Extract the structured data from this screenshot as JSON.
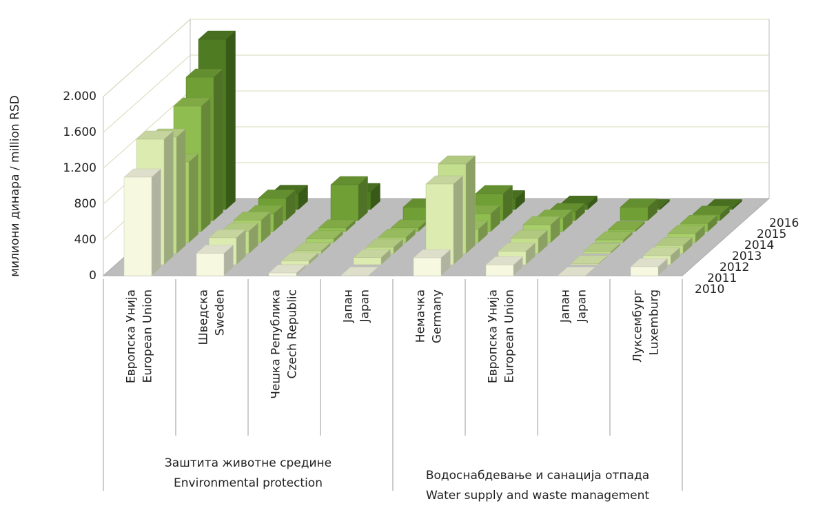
{
  "chart_data": {
    "type": "bar3d",
    "y_label": "милиони динара / million RSD",
    "ylim": [
      0,
      2000
    ],
    "yticks": [
      0,
      400,
      800,
      {
        "value": 1200,
        "label": "1.200"
      },
      {
        "value": 1600,
        "label": "1.600"
      },
      {
        "value": 2000,
        "label": "2.000"
      }
    ],
    "grid": true,
    "groups": [
      {
        "label": [
          "Заштита животне средине",
          "Environmental protection"
        ],
        "categories": [
          [
            "Европска Унија",
            "European Union"
          ],
          [
            "Шведска",
            "Sweden"
          ],
          [
            "Чешка Република",
            "Czech Republic"
          ],
          [
            "Јапан",
            "Japan"
          ]
        ]
      },
      {
        "label": [
          "Водоснабдевање и санација отпада",
          "Water supply and waste management"
        ],
        "categories": [
          [
            "Немачка",
            "Germany"
          ],
          [
            "Европска Унија",
            "European Union"
          ],
          [
            "Јапан",
            "Japan"
          ],
          [
            "Луксембург",
            "Luxemburg"
          ]
        ]
      }
    ],
    "series": [
      {
        "name": "2010",
        "color": "#f6f8e0",
        "values": [
          1100,
          250,
          30,
          5,
          200,
          120,
          5,
          100
        ]
      },
      {
        "name": "2011",
        "color": "#dcecb0",
        "values": [
          1400,
          300,
          40,
          80,
          900,
          150,
          10,
          100
        ]
      },
      {
        "name": "2012",
        "color": "#c3de8d",
        "values": [
          1300,
          250,
          30,
          70,
          1000,
          170,
          20,
          90
        ]
      },
      {
        "name": "2013",
        "color": "#a8cf6a",
        "values": [
          900,
          250,
          40,
          60,
          150,
          200,
          30,
          100
        ]
      },
      {
        "name": "2014",
        "color": "#8fbd4f",
        "values": [
          1400,
          200,
          40,
          40,
          200,
          150,
          20,
          90
        ]
      },
      {
        "name": "2015",
        "color": "#6f9f35",
        "values": [
          1600,
          250,
          400,
          150,
          300,
          100,
          150,
          70
        ]
      },
      {
        "name": "2016",
        "color": "#4f7b22",
        "values": [
          1900,
          180,
          200,
          20,
          120,
          60,
          20,
          20
        ]
      }
    ]
  }
}
